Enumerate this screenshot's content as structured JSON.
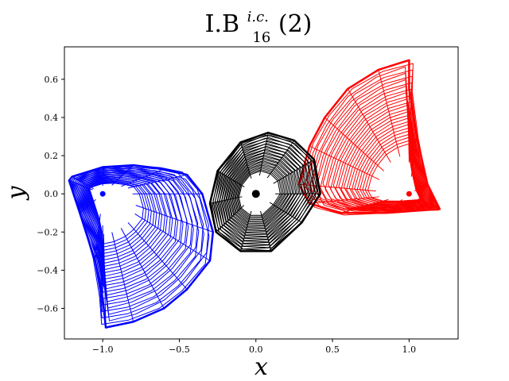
{
  "chart_data": {
    "type": "line",
    "title": {
      "main": "I.B",
      "superscript": "i.c.",
      "subscript": "16",
      "suffix": "(2)"
    },
    "xlabel": "x",
    "ylabel": "y",
    "xlim": [
      -1.25,
      1.32
    ],
    "ylim": [
      -0.76,
      0.77
    ],
    "x_ticks": [
      -1.0,
      -0.5,
      0.0,
      0.5,
      1.0
    ],
    "x_tick_labels": [
      "−1.0",
      "−0.5",
      "0.0",
      "0.5",
      "1.0"
    ],
    "y_ticks": [
      -0.6,
      -0.4,
      -0.2,
      0.0,
      0.2,
      0.4,
      0.6
    ],
    "y_tick_labels": [
      "−0.6",
      "−0.4",
      "−0.2",
      "0.0",
      "0.2",
      "0.4",
      "0.6"
    ],
    "grid": false,
    "legend": false,
    "series": [
      {
        "color": "#0000ff",
        "center": [
          -1.0,
          0.0
        ],
        "outline": [
          [
            -1.2,
            0.09
          ],
          [
            -1.0,
            0.14
          ],
          [
            -0.8,
            0.15
          ],
          [
            -0.6,
            0.13
          ],
          [
            -0.45,
            0.1
          ],
          [
            -0.35,
            0.0
          ],
          [
            -0.28,
            -0.2
          ],
          [
            -0.3,
            -0.35
          ],
          [
            -0.45,
            -0.5
          ],
          [
            -0.6,
            -0.6
          ],
          [
            -0.8,
            -0.67
          ],
          [
            -0.98,
            -0.7
          ],
          [
            -1.0,
            -0.55
          ],
          [
            -1.05,
            -0.35
          ],
          [
            -1.15,
            -0.1
          ],
          [
            -1.22,
            0.07
          ]
        ]
      },
      {
        "color": "#000000",
        "center": [
          0.0,
          0.0
        ],
        "outline": [
          [
            0.08,
            0.32
          ],
          [
            -0.1,
            0.27
          ],
          [
            -0.25,
            0.12
          ],
          [
            -0.3,
            -0.05
          ],
          [
            -0.26,
            -0.2
          ],
          [
            -0.1,
            -0.3
          ],
          [
            0.1,
            -0.3
          ],
          [
            0.3,
            -0.15
          ],
          [
            0.42,
            0.0
          ],
          [
            0.38,
            0.18
          ],
          [
            0.25,
            0.28
          ]
        ]
      },
      {
        "color": "#ff0000",
        "center": [
          1.0,
          0.0
        ],
        "outline": [
          [
            1.0,
            0.7
          ],
          [
            0.8,
            0.65
          ],
          [
            0.6,
            0.55
          ],
          [
            0.45,
            0.4
          ],
          [
            0.35,
            0.25
          ],
          [
            0.28,
            0.05
          ],
          [
            0.35,
            -0.05
          ],
          [
            0.55,
            -0.1
          ],
          [
            0.85,
            -0.1
          ],
          [
            1.2,
            -0.08
          ],
          [
            1.12,
            0.05
          ],
          [
            1.05,
            0.3
          ],
          [
            1.0,
            0.55
          ]
        ]
      }
    ]
  }
}
